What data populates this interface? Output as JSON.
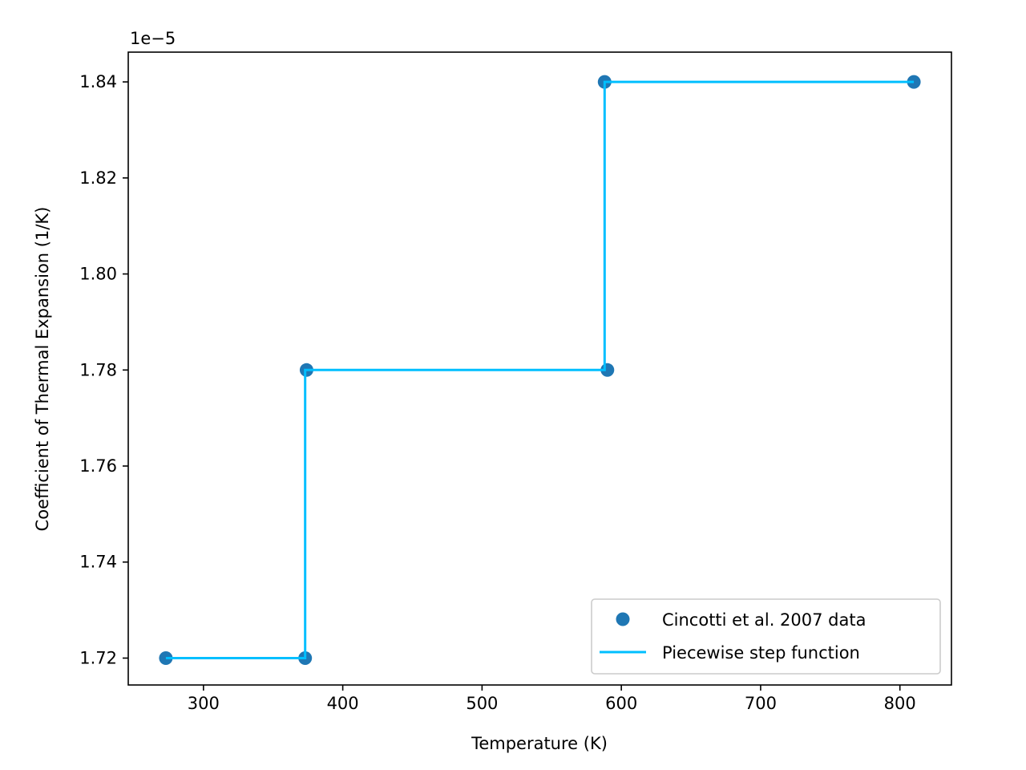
{
  "chart_data": {
    "type": "scatter",
    "xlabel": "Temperature (K)",
    "ylabel": "Coefficient of Thermal Expansion (1/K)",
    "offset_text": "1e−5",
    "xlim": [
      246,
      837
    ],
    "ylim": [
      1.7144,
      1.8462
    ],
    "xticks": [
      300,
      400,
      500,
      600,
      700,
      800
    ],
    "xtick_labels": [
      "300",
      "400",
      "500",
      "600",
      "700",
      "800"
    ],
    "yticks": [
      1.72,
      1.74,
      1.76,
      1.78,
      1.8,
      1.82,
      1.84
    ],
    "ytick_labels": [
      "1.72",
      "1.74",
      "1.76",
      "1.78",
      "1.80",
      "1.82",
      "1.84"
    ],
    "grid": false,
    "legend_position": "lower-right",
    "series": [
      {
        "name": "Cincotti et al. 2007 data",
        "kind": "scatter",
        "color": "#1f77b4",
        "x": [
          273,
          373,
          374,
          588,
          590,
          810
        ],
        "y": [
          1.72,
          1.72,
          1.78,
          1.84,
          1.78,
          1.84
        ]
      },
      {
        "name": "Piecewise step function",
        "kind": "line",
        "color": "#00bfff",
        "x": [
          273,
          373,
          373,
          588,
          588,
          810
        ],
        "y": [
          1.72,
          1.72,
          1.78,
          1.78,
          1.84,
          1.84
        ]
      }
    ]
  }
}
